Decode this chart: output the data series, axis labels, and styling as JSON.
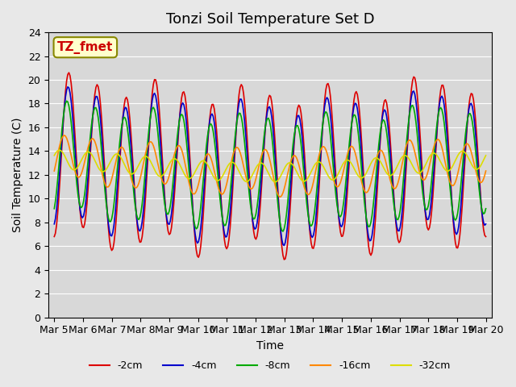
{
  "title": "Tonzi Soil Temperature Set D",
  "xlabel": "Time",
  "ylabel": "Soil Temperature (C)",
  "annotation_text": "TZ_fmet",
  "ylim": [
    0,
    24
  ],
  "yticks": [
    0,
    2,
    4,
    6,
    8,
    10,
    12,
    14,
    16,
    18,
    20,
    22,
    24
  ],
  "x_labels": [
    "Mar 5",
    "Mar 6",
    "Mar 7",
    "Mar 8",
    "Mar 9",
    "Mar 10",
    "Mar 11",
    "Mar 12",
    "Mar 13",
    "Mar 14",
    "Mar 15",
    "Mar 16",
    "Mar 17",
    "Mar 18",
    "Mar 19",
    "Mar 20"
  ],
  "line_colors": {
    "-2cm": "#dd0000",
    "-4cm": "#0000cc",
    "-8cm": "#00aa00",
    "-16cm": "#ff8800",
    "-32cm": "#dddd00"
  },
  "legend_labels": [
    "-2cm",
    "-4cm",
    "-8cm",
    "-16cm",
    "-32cm"
  ],
  "bg_color": "#e8e8e8",
  "plot_bg_color": "#d8d8d8",
  "annotation_bg": "#ffffcc",
  "annotation_border": "#888800",
  "title_fontsize": 13,
  "axis_label_fontsize": 10,
  "tick_label_fontsize": 9,
  "legend_fontsize": 9
}
